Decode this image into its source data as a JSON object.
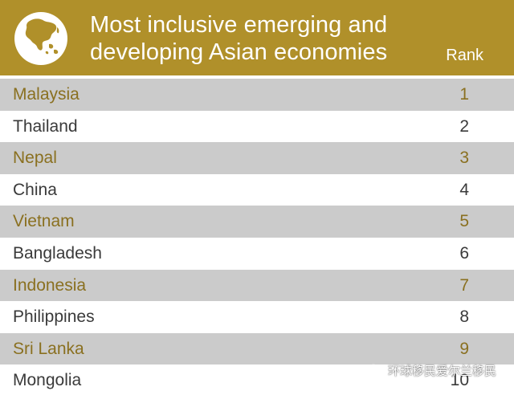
{
  "header": {
    "title_line1": "Most inclusive emerging and",
    "title_line2": "developing Asian economies",
    "rank_label": "Rank",
    "globe_icon": "globe-asia-icon"
  },
  "colors": {
    "header_bg": "#b0902a",
    "row_shade": "#cbcbcb",
    "shade_text": "#8a7020",
    "plain_text": "#3a3a3a"
  },
  "rows": [
    {
      "country": "Malaysia",
      "rank": "1"
    },
    {
      "country": "Thailand",
      "rank": "2"
    },
    {
      "country": "Nepal",
      "rank": "3"
    },
    {
      "country": "China",
      "rank": "4"
    },
    {
      "country": "Vietnam",
      "rank": "5"
    },
    {
      "country": "Bangladesh",
      "rank": "6"
    },
    {
      "country": "Indonesia",
      "rank": "7"
    },
    {
      "country": "Philippines",
      "rank": "8"
    },
    {
      "country": "Sri Lanka",
      "rank": "9"
    },
    {
      "country": "Mongolia",
      "rank": "10"
    }
  ],
  "watermark": {
    "text": "环球移民爱尔兰移民",
    "icon": "wechat-icon"
  }
}
